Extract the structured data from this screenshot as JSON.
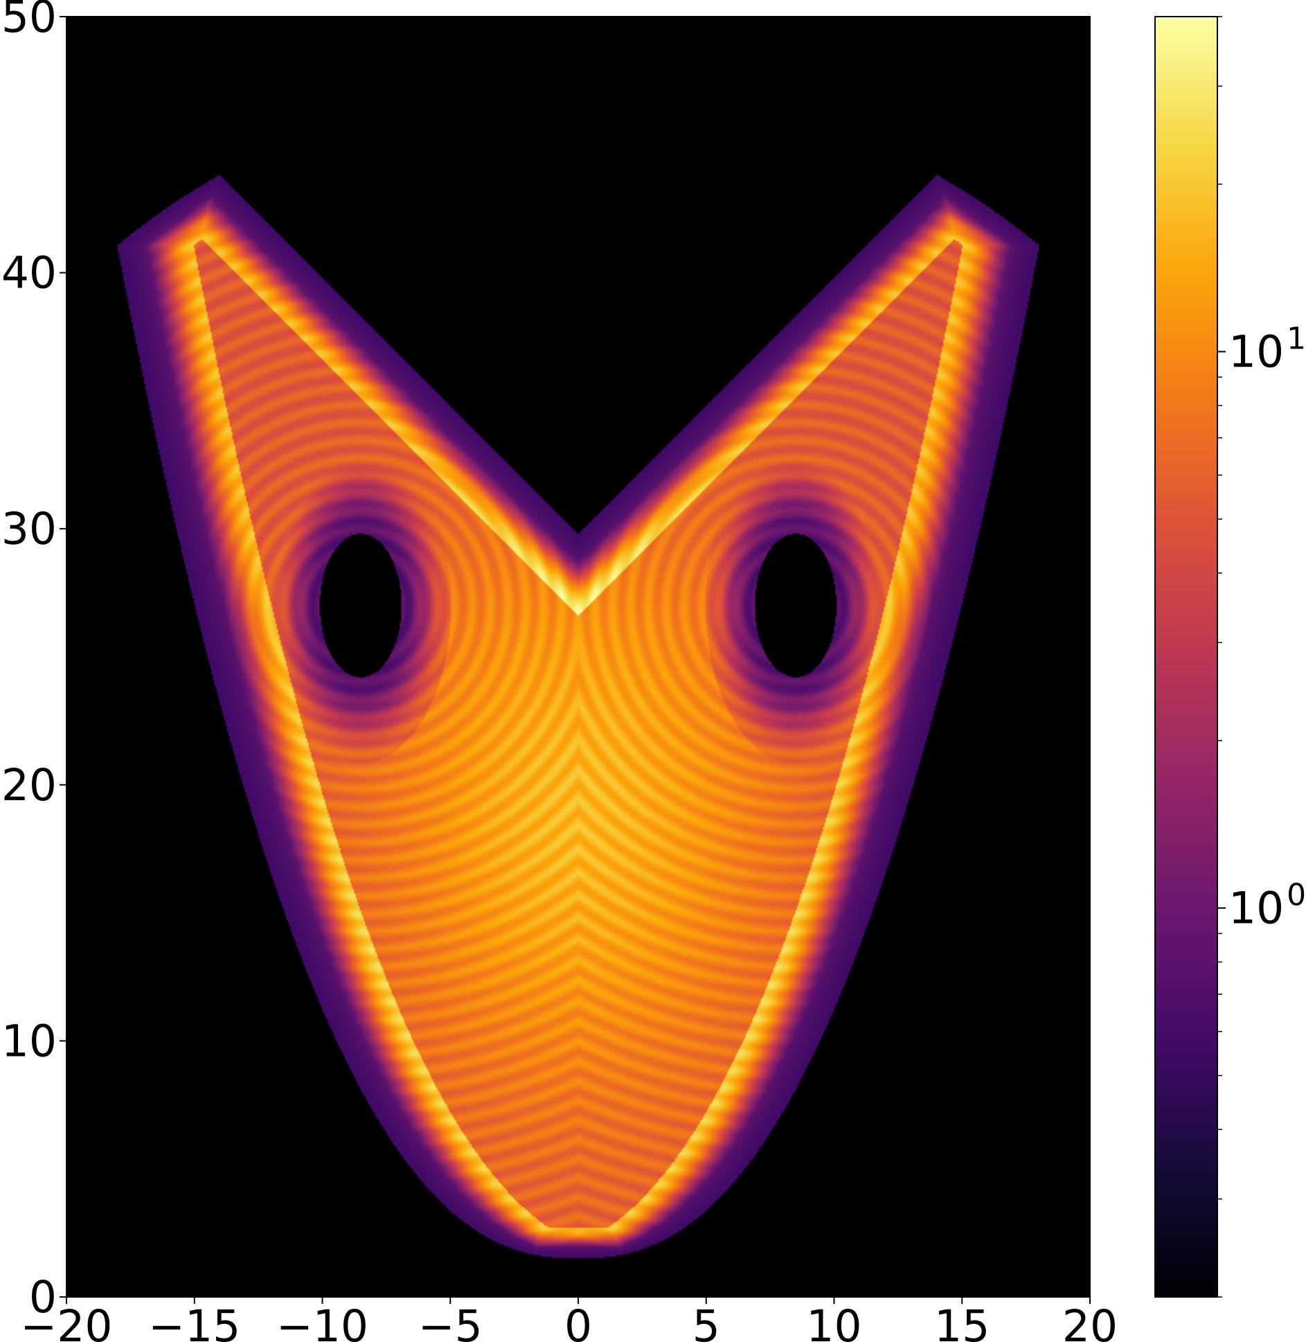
{
  "chart_data": {
    "type": "heatmap",
    "title": "",
    "xlabel": "",
    "ylabel": "",
    "xlim": [
      -20,
      20
    ],
    "ylim": [
      0,
      50
    ],
    "xticks": [
      -20,
      -15,
      -10,
      -5,
      0,
      5,
      10,
      15,
      20
    ],
    "xtick_labels": [
      "−20",
      "−15",
      "−10",
      "−5",
      "0",
      "5",
      "10",
      "15",
      "20"
    ],
    "yticks": [
      0,
      10,
      20,
      30,
      40,
      50
    ],
    "ytick_labels": [
      "0",
      "10",
      "20",
      "30",
      "40",
      "50"
    ],
    "grid": false,
    "colormap": "inferno",
    "background_color": "#000000",
    "colorbar": {
      "scale": "log",
      "range": [
        0.2,
        40
      ],
      "major_ticks": [
        {
          "value": 1,
          "base": "10",
          "exponent": "0"
        },
        {
          "value": 10,
          "base": "10",
          "exponent": "1"
        }
      ],
      "minor_ticks": [
        0.2,
        0.3,
        0.4,
        0.5,
        0.6,
        0.7,
        0.8,
        0.9,
        2,
        3,
        4,
        5,
        6,
        7,
        8,
        9,
        20,
        30,
        40
      ]
    },
    "density_model": {
      "description_of_shape": "Lorenz attractor projection (x vs z), two wings with holes",
      "wings": [
        {
          "center_x": -8.5,
          "center_z": 27,
          "hole_radius_x": 1.6,
          "hole_radius_z": 2.8
        },
        {
          "center_x": 8.5,
          "center_z": 27,
          "hole_radius_x": 1.6,
          "hole_radius_z": 2.8
        }
      ],
      "z_min": 1.5,
      "z_max": 47.5,
      "x_extent": 19.5
    }
  }
}
